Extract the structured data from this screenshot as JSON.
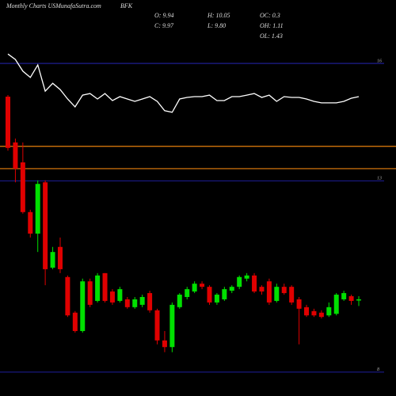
{
  "chart_data": {
    "type": "candlestick",
    "title": "Monthly Charts USMunafaSutra.com",
    "ticker": "BFK",
    "info": [
      "O: 9.94",
      "C: 9.97",
      "H: 10.05",
      "L: 9.80",
      "OC: 0.3",
      "OH: 1.11",
      "OL: 1.43"
    ],
    "ylim": [
      7.5,
      17.62
    ],
    "yticks": [
      16,
      13,
      {
        "value": 8.11,
        "label": "8"
      }
    ],
    "levels": [
      13.88,
      13.31
    ],
    "level_color": "#e8810c",
    "grid_color": "#2a2ad0",
    "up_color": "#00e000",
    "down_color": "#e00000",
    "line_color": "#ffffff",
    "open": [
      15.15,
      13.98,
      13.47,
      12.2,
      11.65,
      12.96,
      10.78,
      11.31,
      10.54,
      9.63,
      9.16,
      10.43,
      9.93,
      10.64,
      10.17,
      9.93,
      9.97,
      9.77,
      9.83,
      10.13,
      9.69,
      8.92,
      8.75,
      9.77,
      10.03,
      10.17,
      10.37,
      10.29,
      9.89,
      9.97,
      10.19,
      10.29,
      10.5,
      10.58,
      10.29,
      10.43,
      9.93,
      10.29,
      10.29,
      9.97,
      9.77,
      9.67,
      9.63,
      9.56,
      9.6,
      9.97,
      10.05,
      9.94
    ],
    "high": [
      15.19,
      14.08,
      13.98,
      12.26,
      13.01,
      13.01,
      11.31,
      11.55,
      10.58,
      9.67,
      10.5,
      10.5,
      10.64,
      10.64,
      10.23,
      10.29,
      10.03,
      10.03,
      10.09,
      10.19,
      9.73,
      9.16,
      9.89,
      10.13,
      10.29,
      10.43,
      10.43,
      10.33,
      10.13,
      10.29,
      10.33,
      10.58,
      10.64,
      10.64,
      10.33,
      10.5,
      10.37,
      10.37,
      10.33,
      10.03,
      9.83,
      9.73,
      9.69,
      9.89,
      10.13,
      10.19,
      10.09,
      10.05
    ],
    "low": [
      13.77,
      12.96,
      12.16,
      11.55,
      11.18,
      10.33,
      10.74,
      10.64,
      9.52,
      9.12,
      9.12,
      9.77,
      9.89,
      9.89,
      9.83,
      9.89,
      9.73,
      9.73,
      9.77,
      9.63,
      8.82,
      8.62,
      8.62,
      9.73,
      9.97,
      10.13,
      10.23,
      9.83,
      9.83,
      9.93,
      10.13,
      10.23,
      10.43,
      10.13,
      10.09,
      9.83,
      9.89,
      10.09,
      9.83,
      8.82,
      9.52,
      9.52,
      9.48,
      9.52,
      9.56,
      9.93,
      9.83,
      9.8
    ],
    "close": [
      13.84,
      13.31,
      12.2,
      11.65,
      12.92,
      10.74,
      11.18,
      10.74,
      9.56,
      9.16,
      10.43,
      9.83,
      10.58,
      9.93,
      9.89,
      10.23,
      9.77,
      9.97,
      10.03,
      9.69,
      8.92,
      8.75,
      9.83,
      10.09,
      10.23,
      10.37,
      10.29,
      9.89,
      10.09,
      10.23,
      10.29,
      10.54,
      10.58,
      10.17,
      10.17,
      9.89,
      10.29,
      10.13,
      9.89,
      9.73,
      9.56,
      9.56,
      9.52,
      9.77,
      10.09,
      10.13,
      9.93,
      9.97
    ],
    "line": [
      16.24,
      16.1,
      15.8,
      15.64,
      15.96,
      15.29,
      15.49,
      15.33,
      15.09,
      14.89,
      15.19,
      15.23,
      15.09,
      15.23,
      15.05,
      15.15,
      15.09,
      15.03,
      15.09,
      15.15,
      15.03,
      14.79,
      14.75,
      15.09,
      15.13,
      15.15,
      15.15,
      15.19,
      15.05,
      15.05,
      15.15,
      15.15,
      15.19,
      15.23,
      15.13,
      15.19,
      15.03,
      15.15,
      15.13,
      15.13,
      15.09,
      15.03,
      14.99,
      14.99,
      14.99,
      15.03,
      15.11,
      15.15
    ]
  }
}
